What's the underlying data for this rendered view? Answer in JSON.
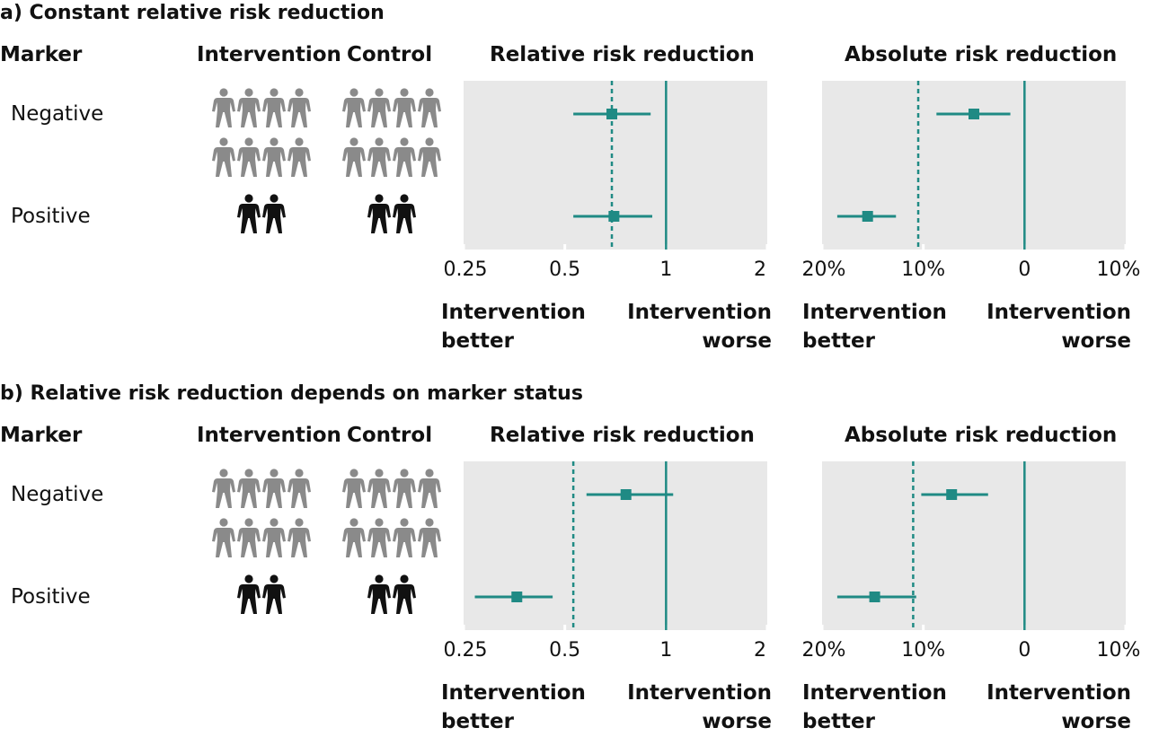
{
  "colors": {
    "teal": "#1f8a84",
    "plot_bg": "#e8e8e8",
    "grey_person": "#8a8a8a",
    "black_person": "#111111"
  },
  "headers": {
    "marker": "Marker",
    "intervention": "Intervention",
    "control": "Control",
    "rrr": "Relative risk reduction",
    "arr": "Absolute risk reduction"
  },
  "rows": {
    "negative": "Negative",
    "positive": "Positive"
  },
  "direction": {
    "better": "Intervention\nbetter",
    "worse": "Intervention\nworse"
  },
  "icons": {
    "person": "person-icon"
  },
  "people_counts": {
    "negative_per_group": 8,
    "positive_per_group": 2
  },
  "chart_data": [
    {
      "type": "forest",
      "title": "a) Constant relative risk reduction",
      "plots": [
        {
          "name": "Relative risk reduction",
          "scale": "log",
          "xlim": [
            0.25,
            2
          ],
          "ticks": [
            0.25,
            0.5,
            1,
            2
          ],
          "tick_labels": [
            "0.25",
            "0.5",
            "1",
            "2"
          ],
          "reference_line": 1,
          "dashed_line": 0.69,
          "points": [
            {
              "marker": "Negative",
              "estimate": 0.69,
              "lower": 0.53,
              "upper": 0.9
            },
            {
              "marker": "Positive",
              "estimate": 0.7,
              "lower": 0.53,
              "upper": 0.91
            }
          ]
        },
        {
          "name": "Absolute risk reduction",
          "scale": "linear",
          "xlim": [
            -20,
            10
          ],
          "ticks": [
            -20,
            -10,
            0,
            10
          ],
          "tick_labels": [
            "20%",
            "10%",
            "0",
            "10%"
          ],
          "reference_line": 0,
          "dashed_line": -10.5,
          "points": [
            {
              "marker": "Negative",
              "estimate": -5,
              "lower": -8.7,
              "upper": -1.4
            },
            {
              "marker": "Positive",
              "estimate": -15.5,
              "lower": -18.5,
              "upper": -12.7
            }
          ]
        }
      ]
    },
    {
      "type": "forest",
      "title": "b) Relative risk reduction depends on marker status",
      "plots": [
        {
          "name": "Relative risk reduction",
          "scale": "log",
          "xlim": [
            0.25,
            2
          ],
          "ticks": [
            0.25,
            0.5,
            1,
            2
          ],
          "tick_labels": [
            "0.25",
            "0.5",
            "1",
            "2"
          ],
          "reference_line": 1,
          "dashed_line": 0.53,
          "points": [
            {
              "marker": "Negative",
              "estimate": 0.76,
              "lower": 0.58,
              "upper": 1.05
            },
            {
              "marker": "Positive",
              "estimate": 0.36,
              "lower": 0.27,
              "upper": 0.46
            }
          ]
        },
        {
          "name": "Absolute risk reduction",
          "scale": "linear",
          "xlim": [
            -20,
            10
          ],
          "ticks": [
            -20,
            -10,
            0,
            10
          ],
          "tick_labels": [
            "20%",
            "10%",
            "0",
            "10%"
          ],
          "reference_line": 0,
          "dashed_line": -11,
          "points": [
            {
              "marker": "Negative",
              "estimate": -7.2,
              "lower": -10.2,
              "upper": -3.6
            },
            {
              "marker": "Positive",
              "estimate": -14.8,
              "lower": -18.5,
              "upper": -10.7
            }
          ]
        }
      ]
    }
  ]
}
